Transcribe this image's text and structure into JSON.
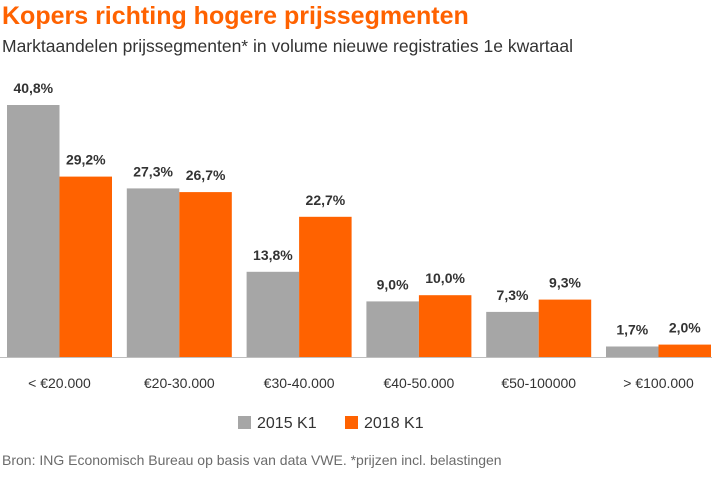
{
  "chart_data": {
    "type": "bar",
    "title": "Kopers richting hogere prijssegmenten",
    "subtitle": "Marktaandelen prijssegmenten* in volume nieuwe registraties 1e kwartaal",
    "categories": [
      "< €20.000",
      "€20-30.000",
      "€30-40.000",
      "€40-50.000",
      "€50-100000",
      "> €100.000"
    ],
    "series": [
      {
        "name": "2015 K1",
        "color": "#a6a6a6",
        "values": [
          40.8,
          27.3,
          13.8,
          9.0,
          7.3,
          1.7
        ],
        "labels": [
          "40,8%",
          "27,3%",
          "13,8%",
          "9,0%",
          "7,3%",
          "1,7%"
        ]
      },
      {
        "name": "2018 K1",
        "color": "#ff6200",
        "values": [
          29.2,
          26.7,
          22.7,
          10.0,
          9.3,
          2.0
        ],
        "labels": [
          "29,2%",
          "26,7%",
          "22,7%",
          "10,0%",
          "9,3%",
          "2,0%"
        ]
      }
    ],
    "ylim": [
      0,
      40.8
    ],
    "grid": false,
    "legend_position": "bottom-center",
    "source": "Bron: ING Economisch Bureau op basis van data VWE. *prijzen incl. belastingen"
  }
}
